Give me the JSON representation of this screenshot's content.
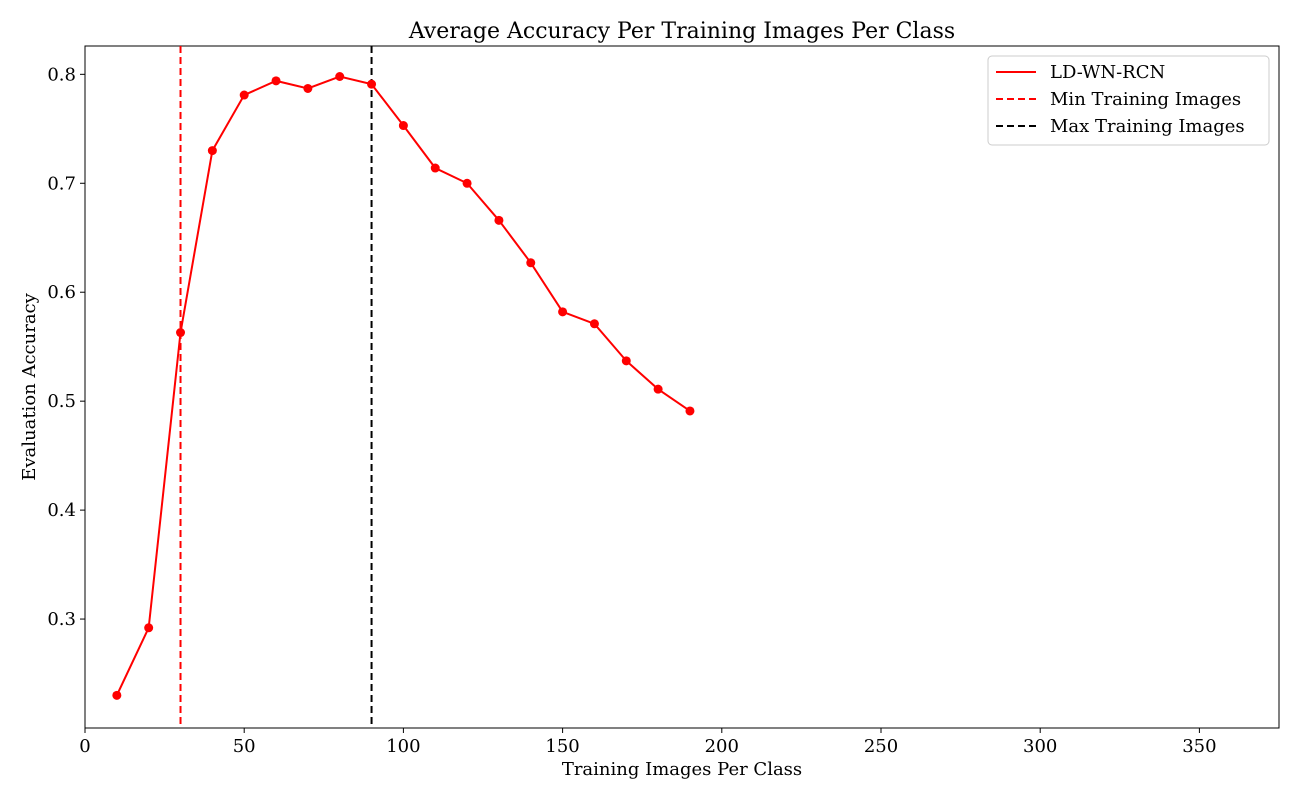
{
  "chart_data": {
    "type": "line",
    "title": "Average Accuracy Per Training Images Per Class",
    "xlabel": "Training Images Per Class",
    "ylabel": "Evaluation Accuracy",
    "xlim": [
      0,
      375
    ],
    "ylim": [
      0.2,
      0.826
    ],
    "xticks": [
      0,
      50,
      100,
      150,
      200,
      250,
      300,
      350
    ],
    "yticks": [
      0.3,
      0.4,
      0.5,
      0.6,
      0.7,
      0.8
    ],
    "xtick_labels": [
      "0",
      "50",
      "100",
      "150",
      "200",
      "250",
      "300",
      "350"
    ],
    "ytick_labels": [
      "0.3",
      "0.4",
      "0.5",
      "0.6",
      "0.7",
      "0.8"
    ],
    "grid": false,
    "legend_position": "top-right",
    "series": [
      {
        "name": "LD-WN-RCN",
        "color": "#ff0000",
        "style": "solid",
        "marker": "circle",
        "x": [
          10,
          20,
          30,
          40,
          50,
          60,
          70,
          80,
          90,
          100,
          110,
          120,
          130,
          140,
          150,
          160,
          170,
          180,
          190
        ],
        "y": [
          0.23,
          0.292,
          0.563,
          0.73,
          0.781,
          0.794,
          0.787,
          0.798,
          0.791,
          0.753,
          0.714,
          0.7,
          0.666,
          0.627,
          0.582,
          0.571,
          0.537,
          0.511,
          0.491
        ]
      }
    ],
    "vlines": [
      {
        "name": "Min Training Images",
        "x": 30,
        "color": "#ff0000",
        "style": "dashed"
      },
      {
        "name": "Max Training Images",
        "x": 90,
        "color": "#000000",
        "style": "dashed"
      }
    ]
  }
}
